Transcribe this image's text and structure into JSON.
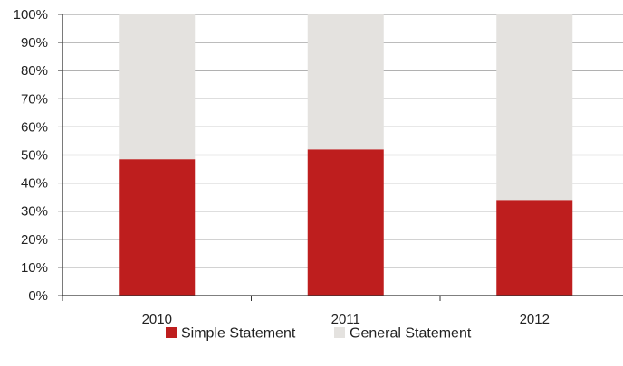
{
  "chart_data": {
    "type": "bar",
    "stacked": true,
    "percent": true,
    "categories": [
      "2010",
      "2011",
      "2012"
    ],
    "series": [
      {
        "name": "Simple Statement",
        "values": [
          48.5,
          52,
          34
        ],
        "color": "#be1e1e"
      },
      {
        "name": "General Statement",
        "values": [
          51.5,
          48,
          66
        ],
        "color": "#e4e2df"
      }
    ],
    "y_ticks": [
      "0%",
      "10%",
      "20%",
      "30%",
      "40%",
      "50%",
      "60%",
      "70%",
      "80%",
      "90%",
      "100%"
    ],
    "ylim": [
      0,
      100
    ],
    "grid": true,
    "gridline_color": "#a6a6a6",
    "legend_position": "bottom",
    "title": "",
    "xlabel": "",
    "ylabel": ""
  }
}
